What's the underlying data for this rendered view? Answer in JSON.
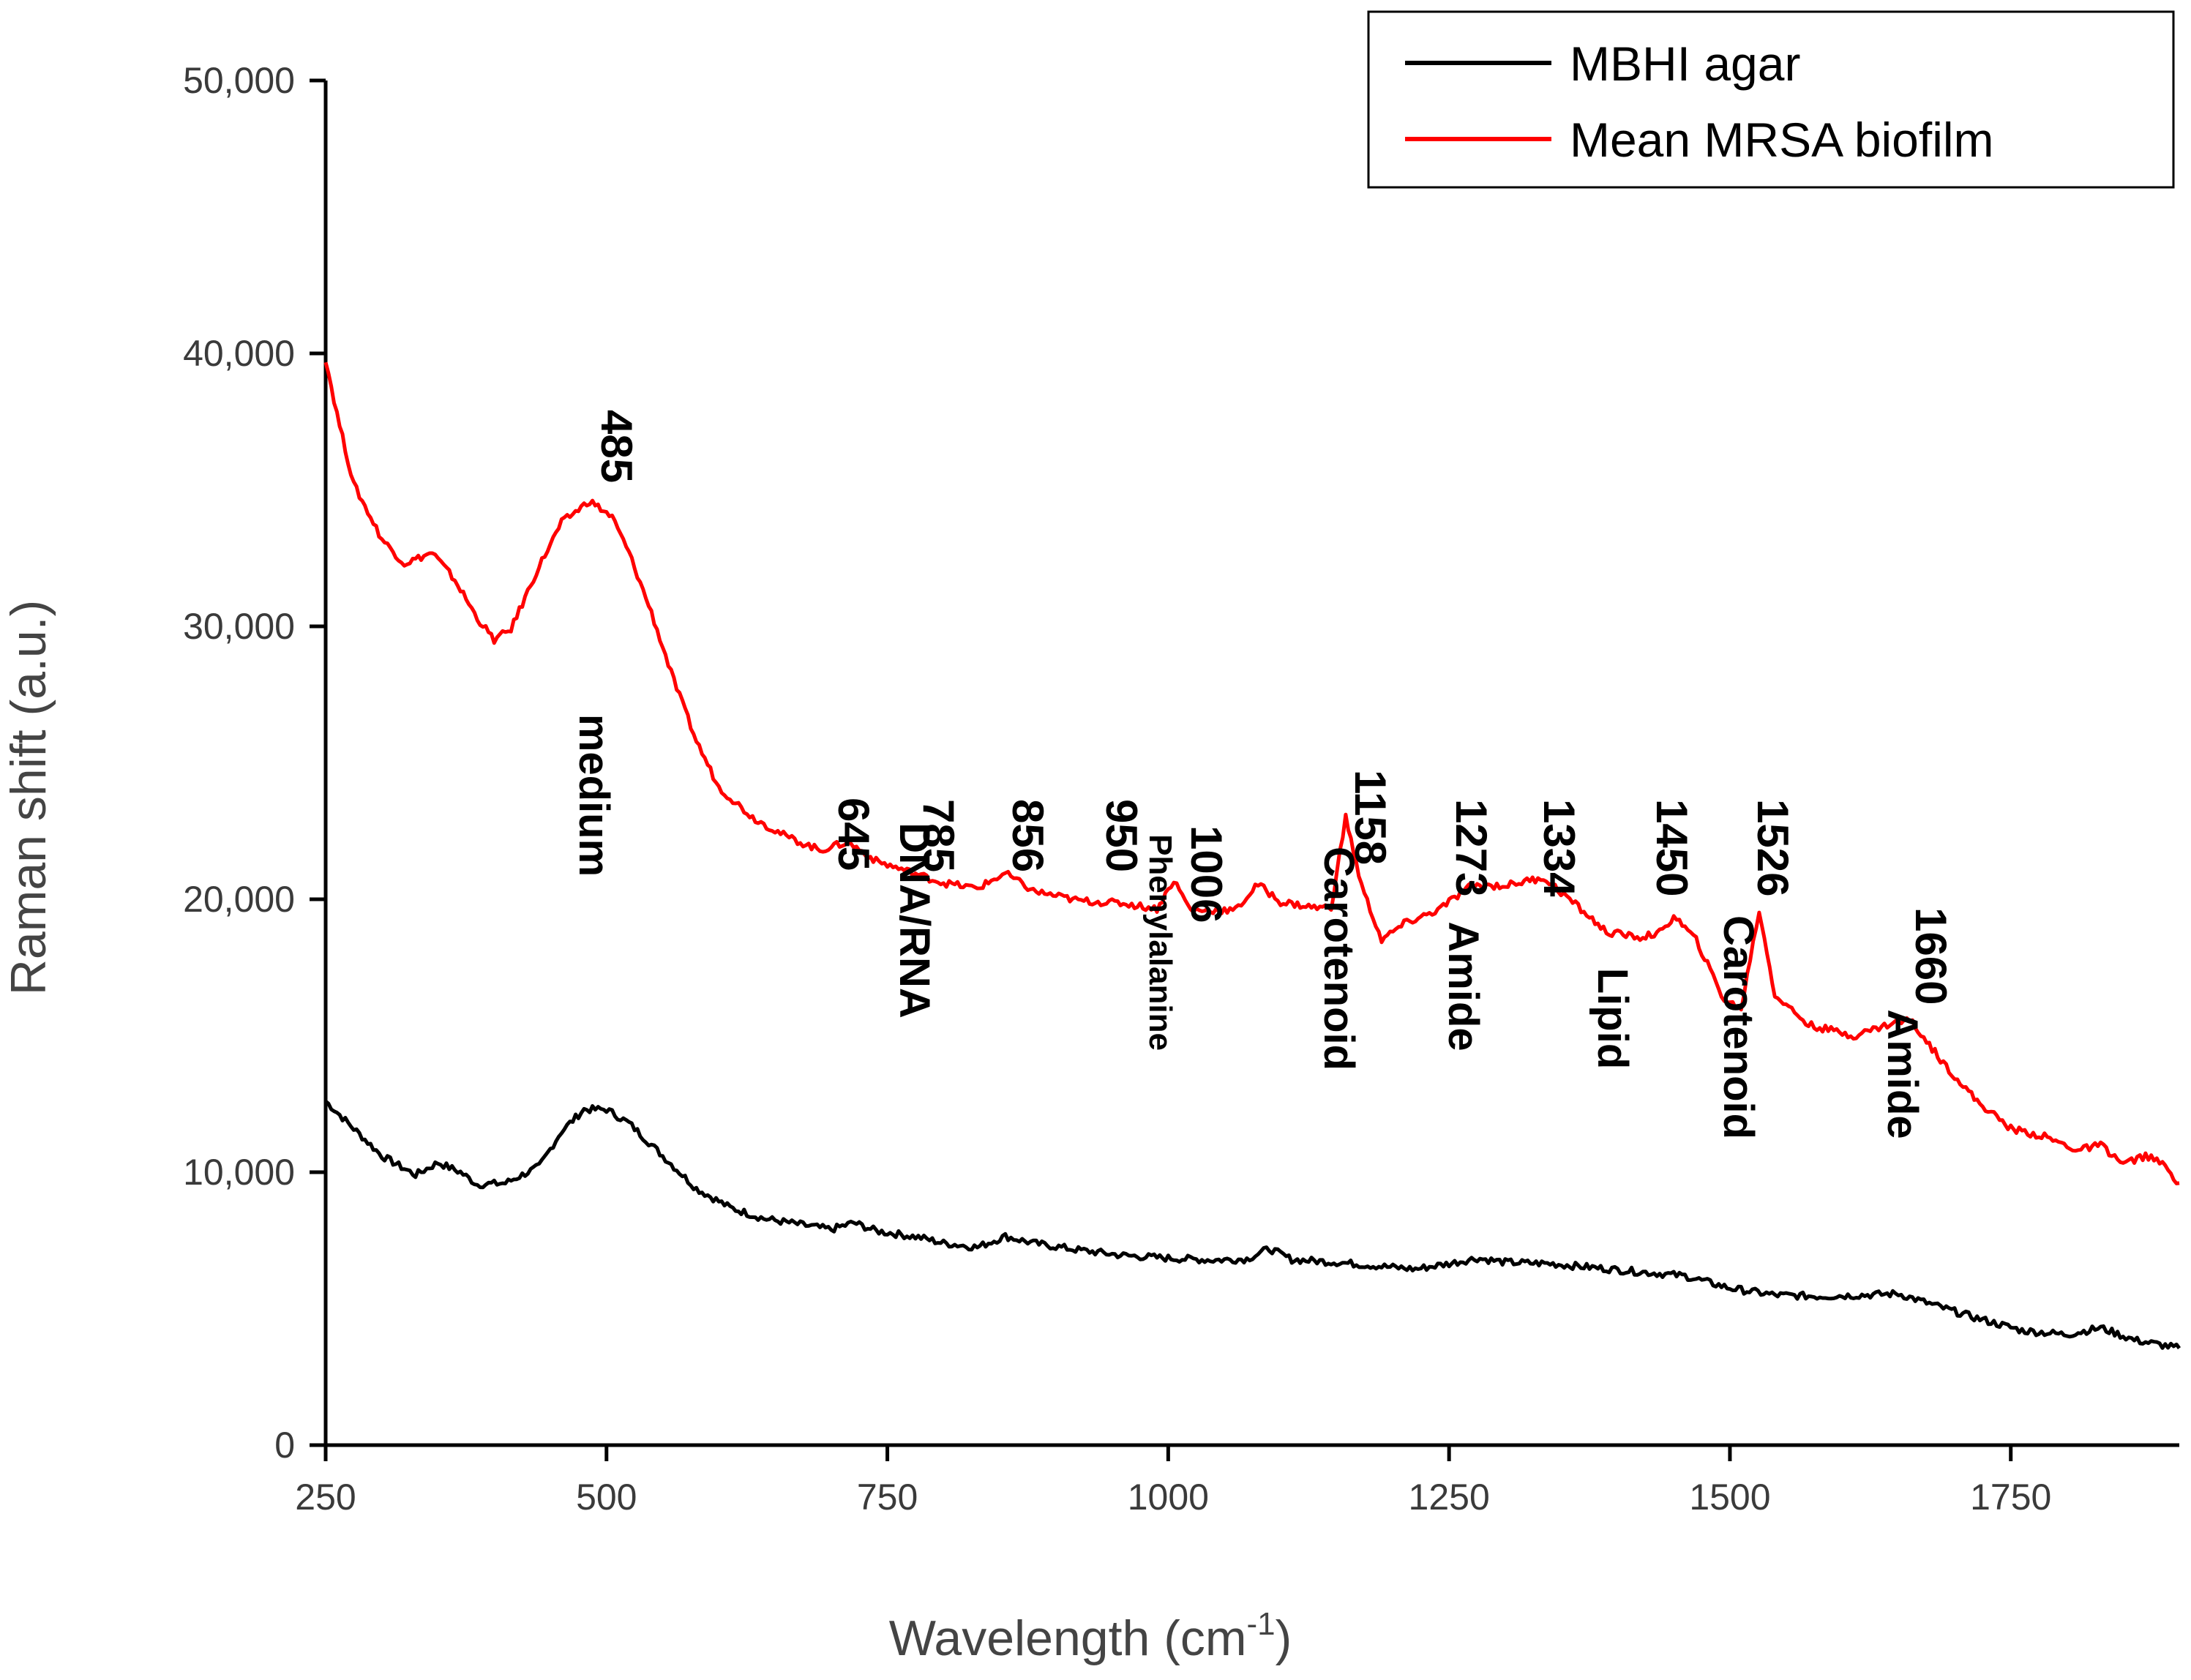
{
  "chart_data": {
    "type": "line",
    "title": "",
    "xlabel": "Wavelength (cm",
    "xlabel_sup": "-1",
    "xlabel_close": ")",
    "ylabel": "Raman shift (a.u.)",
    "xlim": [
      250,
      1900
    ],
    "ylim": [
      0,
      50000
    ],
    "x_ticks": [
      250,
      500,
      750,
      1000,
      1250,
      1500,
      1750
    ],
    "x_tick_labels": [
      "250",
      "500",
      "750",
      "1000",
      "1250",
      "1500",
      "1750"
    ],
    "y_ticks": [
      0,
      10000,
      20000,
      30000,
      40000,
      50000
    ],
    "y_tick_labels": [
      "0",
      "10,000",
      "20,000",
      "30,000",
      "40,000",
      "50,000"
    ],
    "legend": {
      "position": "top-right",
      "entries": [
        {
          "name": "MBHI agar",
          "color": "#000000"
        },
        {
          "name": "Mean MRSA biofilm",
          "color": "#ff0000"
        }
      ]
    },
    "series": [
      {
        "name": "MBHI agar",
        "color": "#000000",
        "points": [
          [
            250,
            12600
          ],
          [
            270,
            11800
          ],
          [
            300,
            10600
          ],
          [
            330,
            9900
          ],
          [
            350,
            10350
          ],
          [
            370,
            10000
          ],
          [
            385,
            9550
          ],
          [
            410,
            9600
          ],
          [
            440,
            10200
          ],
          [
            460,
            11500
          ],
          [
            480,
            12300
          ],
          [
            500,
            12300
          ],
          [
            520,
            11800
          ],
          [
            550,
            10600
          ],
          [
            580,
            9400
          ],
          [
            610,
            8700
          ],
          [
            640,
            8300
          ],
          [
            670,
            8100
          ],
          [
            700,
            7900
          ],
          [
            720,
            8150
          ],
          [
            740,
            7850
          ],
          [
            780,
            7600
          ],
          [
            800,
            7400
          ],
          [
            830,
            7250
          ],
          [
            855,
            7650
          ],
          [
            880,
            7400
          ],
          [
            920,
            7150
          ],
          [
            960,
            6950
          ],
          [
            1000,
            6850
          ],
          [
            1040,
            6780
          ],
          [
            1070,
            6820
          ],
          [
            1090,
            7200
          ],
          [
            1110,
            6800
          ],
          [
            1150,
            6700
          ],
          [
            1190,
            6550
          ],
          [
            1220,
            6450
          ],
          [
            1250,
            6650
          ],
          [
            1275,
            6850
          ],
          [
            1300,
            6700
          ],
          [
            1340,
            6650
          ],
          [
            1380,
            6500
          ],
          [
            1420,
            6350
          ],
          [
            1460,
            6200
          ],
          [
            1500,
            5750
          ],
          [
            1540,
            5500
          ],
          [
            1580,
            5450
          ],
          [
            1620,
            5500
          ],
          [
            1650,
            5550
          ],
          [
            1680,
            5150
          ],
          [
            1720,
            4650
          ],
          [
            1760,
            4200
          ],
          [
            1800,
            4050
          ],
          [
            1830,
            4300
          ],
          [
            1860,
            3850
          ],
          [
            1900,
            3550
          ]
        ]
      },
      {
        "name": "Mean MRSA biofilm",
        "color": "#ff0000",
        "points": [
          [
            250,
            39800
          ],
          [
            260,
            37800
          ],
          [
            275,
            35200
          ],
          [
            300,
            33200
          ],
          [
            320,
            32300
          ],
          [
            345,
            32700
          ],
          [
            365,
            31700
          ],
          [
            385,
            30300
          ],
          [
            400,
            29500
          ],
          [
            415,
            29900
          ],
          [
            440,
            32200
          ],
          [
            460,
            33800
          ],
          [
            485,
            34600
          ],
          [
            505,
            34000
          ],
          [
            520,
            32700
          ],
          [
            540,
            30500
          ],
          [
            560,
            28000
          ],
          [
            580,
            25800
          ],
          [
            600,
            24100
          ],
          [
            630,
            23000
          ],
          [
            660,
            22300
          ],
          [
            690,
            21800
          ],
          [
            715,
            22100
          ],
          [
            740,
            21400
          ],
          [
            770,
            21000
          ],
          [
            800,
            20600
          ],
          [
            830,
            20400
          ],
          [
            855,
            20950
          ],
          [
            880,
            20300
          ],
          [
            920,
            19950
          ],
          [
            960,
            19850
          ],
          [
            990,
            19650
          ],
          [
            1005,
            20700
          ],
          [
            1020,
            19600
          ],
          [
            1060,
            19600
          ],
          [
            1080,
            20550
          ],
          [
            1100,
            19900
          ],
          [
            1130,
            19700
          ],
          [
            1145,
            19700
          ],
          [
            1158,
            23000
          ],
          [
            1172,
            20500
          ],
          [
            1190,
            18500
          ],
          [
            1210,
            19100
          ],
          [
            1240,
            19600
          ],
          [
            1270,
            20500
          ],
          [
            1300,
            20500
          ],
          [
            1334,
            20800
          ],
          [
            1360,
            19900
          ],
          [
            1390,
            18800
          ],
          [
            1420,
            18600
          ],
          [
            1440,
            18800
          ],
          [
            1450,
            19400
          ],
          [
            1470,
            18500
          ],
          [
            1495,
            16300
          ],
          [
            1510,
            16000
          ],
          [
            1526,
            19600
          ],
          [
            1540,
            16500
          ],
          [
            1570,
            15400
          ],
          [
            1610,
            15000
          ],
          [
            1640,
            15400
          ],
          [
            1660,
            15600
          ],
          [
            1690,
            14000
          ],
          [
            1720,
            12600
          ],
          [
            1750,
            11600
          ],
          [
            1780,
            11300
          ],
          [
            1810,
            10800
          ],
          [
            1830,
            11000
          ],
          [
            1850,
            10300
          ],
          [
            1870,
            10600
          ],
          [
            1885,
            10300
          ],
          [
            1900,
            9600
          ]
        ]
      }
    ],
    "peak_labels": [
      {
        "x": 485,
        "text": "485"
      },
      {
        "x": 645,
        "text": "645"
      },
      {
        "x": 785,
        "text": "785"
      },
      {
        "x": 856,
        "text": "856"
      },
      {
        "x": 950,
        "text": "950"
      },
      {
        "x": 1006,
        "text": "1006"
      },
      {
        "x": 1158,
        "text": "1158"
      },
      {
        "x": 1273,
        "text": "1273"
      },
      {
        "x": 1334,
        "text": "1334"
      },
      {
        "x": 1450,
        "text": "1450"
      },
      {
        "x": 1526,
        "text": "1526"
      },
      {
        "x": 1660,
        "text": "1660"
      }
    ],
    "band_labels": [
      {
        "x": 485,
        "text": "medium"
      },
      {
        "x": 785,
        "text": "DNA/RNA"
      },
      {
        "x": 1006,
        "text": "Phenylalanine"
      },
      {
        "x": 1158,
        "text": "Carotenoid"
      },
      {
        "x": 1273,
        "text": "Amide"
      },
      {
        "x": 1404,
        "text": "Lipid"
      },
      {
        "x": 1526,
        "text": "Carotenoid"
      },
      {
        "x": 1660,
        "text": "Amide"
      }
    ]
  }
}
